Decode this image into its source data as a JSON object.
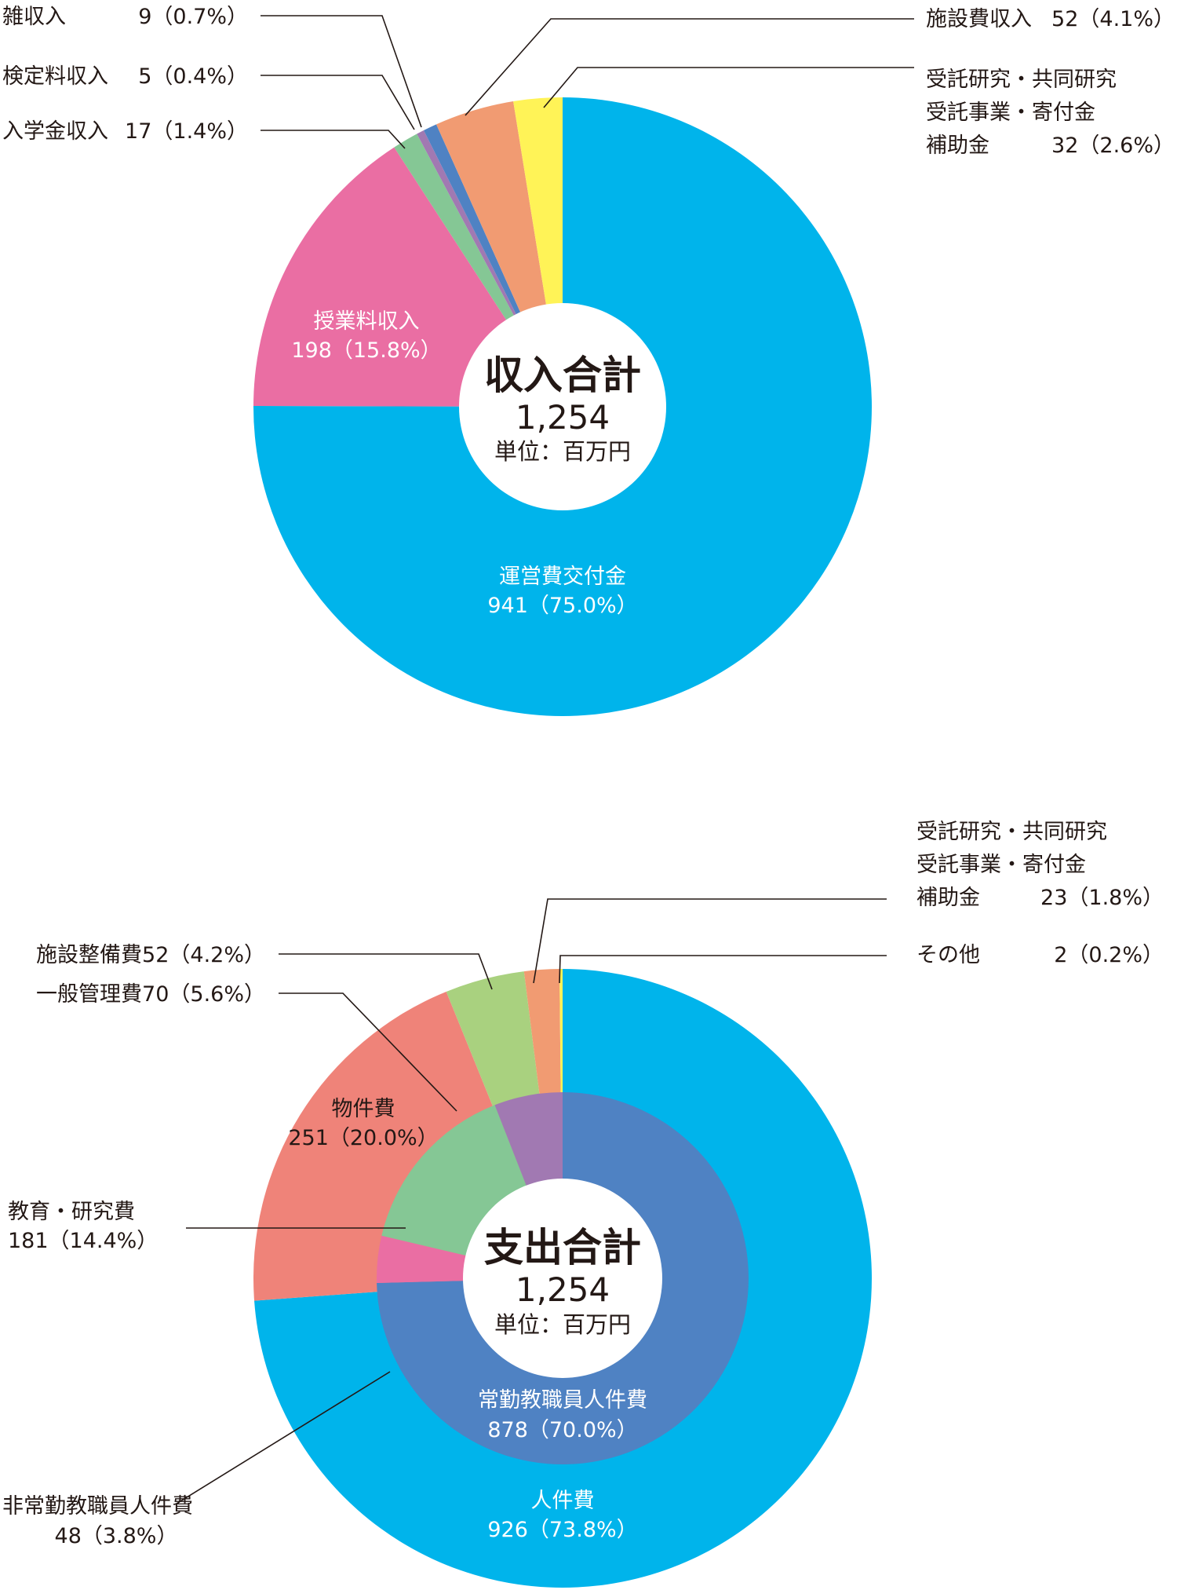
{
  "chart_data": [
    {
      "type": "pie",
      "title": "収入合計",
      "total": "1,254",
      "unit": "単位：百万円",
      "slices": [
        {
          "name": "運営費交付金",
          "value": 941,
          "value_label": "941（75.0%）",
          "color": "#00b4eb"
        },
        {
          "name": "授業料収入",
          "value": 198,
          "value_label": "198（15.8%）",
          "color": "#ea6ea3"
        },
        {
          "name": "入学金収入",
          "value": 17,
          "value_label": "17（1.4%）",
          "color": "#85c795"
        },
        {
          "name": "検定料収入",
          "value": 5,
          "value_label": "5（0.4%）",
          "color": "#a179b2"
        },
        {
          "name": "雑収入",
          "value": 9,
          "value_label": "9（0.7%）",
          "color": "#4f82c3"
        },
        {
          "name": "施設費収入",
          "value": 52,
          "value_label": "52（4.1%）",
          "color": "#f19b72"
        },
        {
          "name": "受託研究・共同研究\n受託事業・寄付金\n補助金",
          "value": 32,
          "value_label": "32（2.6%）",
          "color": "#fff357"
        }
      ]
    },
    {
      "type": "pie",
      "title": "支出合計",
      "total": "1,254",
      "unit": "単位：百万円",
      "outer": [
        {
          "name": "人件費",
          "value": 926,
          "value_label": "926（73.8%）",
          "color": "#00b4eb"
        },
        {
          "name": "物件費",
          "value": 251,
          "value_label": "251（20.0%）",
          "color": "#ef8379"
        },
        {
          "name": "施設整備費",
          "value": 52,
          "value_label": "52（4.2%）",
          "color": "#a9d17f"
        },
        {
          "name": "受託研究・共同研究\n受託事業・寄付金\n補助金",
          "value": 23,
          "value_label": "23（1.8%）",
          "color": "#f19b72"
        },
        {
          "name": "その他",
          "value": 2,
          "value_label": "2（0.2%）",
          "color": "#fff357"
        }
      ],
      "inner": [
        {
          "name": "常勤教職員人件費",
          "value": 878,
          "value_label": "878（70.0%）",
          "color": "#4f82c3"
        },
        {
          "name": "非常勤教職員人件費",
          "value": 48,
          "value_label": "48（3.8%）",
          "color": "#ea6ea3"
        },
        {
          "name": "教育・研究費",
          "value": 181,
          "value_label": "181（14.4%）",
          "color": "#85c795"
        },
        {
          "name": "一般管理費",
          "value": 70,
          "value_label": "70（5.6%）",
          "color": "#a179b2"
        }
      ]
    }
  ]
}
